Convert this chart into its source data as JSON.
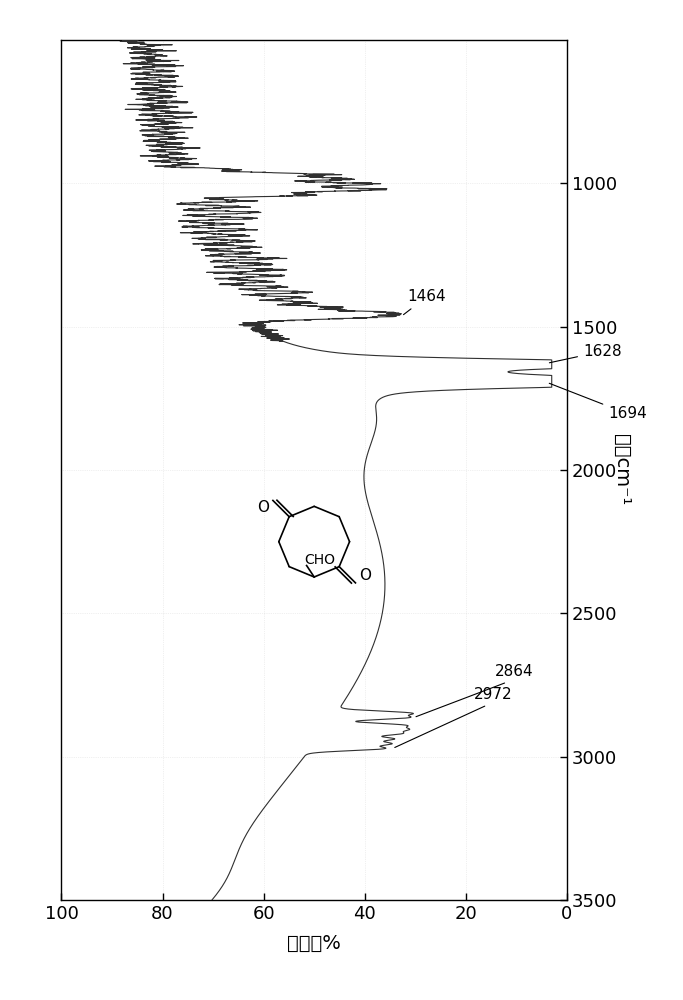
{
  "background_color": "#ffffff",
  "line_color": "#303030",
  "xlabel_label": "透射率%",
  "ylabel_label": "波数cm⁻¹",
  "xlim": [
    100,
    0
  ],
  "ylim": [
    3500,
    500
  ],
  "xticks": [
    100,
    80,
    60,
    40,
    20,
    0
  ],
  "yticks": [
    1000,
    1500,
    2000,
    2500,
    3000,
    3500
  ],
  "annotations": [
    {
      "wn": 2972,
      "label": "2972"
    },
    {
      "wn": 2864,
      "label": "2864"
    },
    {
      "wn": 1694,
      "label": "1694"
    },
    {
      "wn": 1628,
      "label": "1628"
    },
    {
      "wn": 1464,
      "label": "1464"
    }
  ]
}
